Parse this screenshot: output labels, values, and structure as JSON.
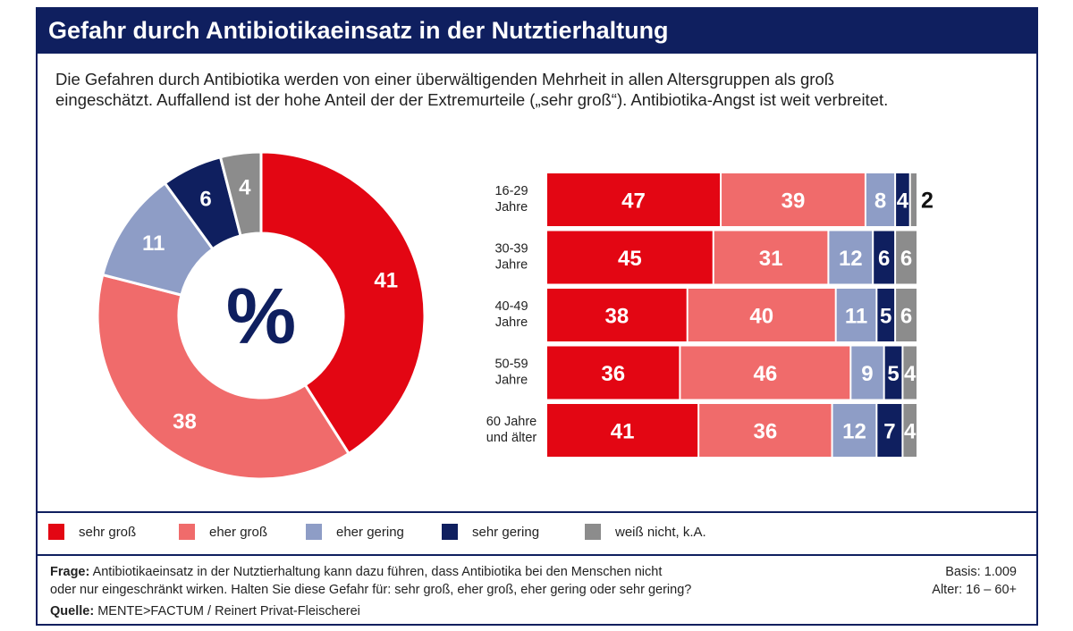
{
  "header": {
    "title": "Gefahr durch Antibiotikaeinsatz in der Nutztierhaltung",
    "subtitle_line1": "Die Gefahren durch Antibiotika werden von einer überwältigenden Mehrheit in allen Altersgruppen als groß",
    "subtitle_line2": "eingeschätzt. Auffallend ist der hohe Anteil der der Extremurteile („sehr groß“). Antibiotika-Angst ist weit verbreitet."
  },
  "colors": {
    "sehr_gross": "#e30613",
    "eher_gross": "#f06b6b",
    "eher_gering": "#8e9dc6",
    "sehr_gering": "#0f1f5f",
    "weiss_nicht": "#8c8c8c",
    "navy": "#0f1f5f"
  },
  "chart_data": [
    {
      "type": "pie",
      "center_label": "%",
      "labels": [
        "sehr groß",
        "eher groß",
        "eher gering",
        "sehr gering",
        "weiß nicht, k.A."
      ],
      "values": [
        41,
        38,
        11,
        6,
        4
      ]
    },
    {
      "type": "bar",
      "orientation": "horizontal",
      "stacked": true,
      "categories": [
        [
          "16-29",
          "Jahre"
        ],
        [
          "30-39",
          "Jahre"
        ],
        [
          "40-49",
          "Jahre"
        ],
        [
          "50-59",
          "Jahre"
        ],
        [
          "60 Jahre",
          "und älter"
        ]
      ],
      "series": [
        {
          "name": "sehr groß",
          "values": [
            47,
            45,
            38,
            36,
            41
          ]
        },
        {
          "name": "eher groß",
          "values": [
            39,
            31,
            40,
            46,
            36
          ]
        },
        {
          "name": "eher gering",
          "values": [
            8,
            12,
            11,
            9,
            12
          ]
        },
        {
          "name": "sehr gering",
          "values": [
            4,
            6,
            5,
            5,
            7
          ]
        },
        {
          "name": "weiß nicht, k.A.",
          "values": [
            2,
            6,
            6,
            4,
            4
          ]
        }
      ]
    }
  ],
  "legend": [
    "sehr groß",
    "eher groß",
    "eher gering",
    "sehr gering",
    "weiß nicht, k.A."
  ],
  "footer": {
    "question_label": "Frage:",
    "question_text_line1": "Antibiotikaeinsatz in der Nutztierhaltung kann dazu führen, dass Antibiotika bei den Menschen nicht",
    "question_text_line2": "oder nur eingeschränkt wirken. Halten Sie diese Gefahr für: sehr groß, eher groß, eher gering oder sehr gering?",
    "basis": "Basis: 1.009",
    "alter": "Alter: 16 – 60+",
    "source_label": "Quelle:",
    "source_text": "MENTE>FACTUM / Reinert Privat-Fleischerei"
  }
}
